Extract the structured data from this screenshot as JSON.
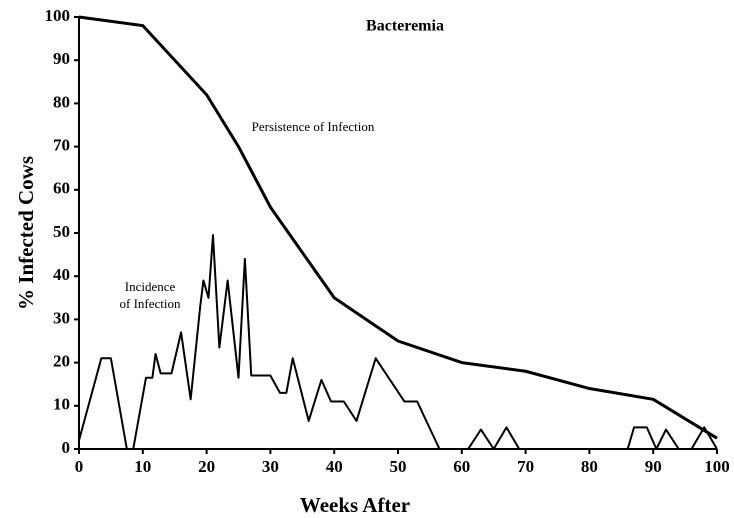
{
  "chart_data": {
    "type": "line",
    "title": "Bacteremia",
    "xlabel": "Weeks After",
    "ylabel": "% Infected Cows",
    "annotations": [
      "Persistence of Infection",
      "Incidence",
      "of Infection"
    ],
    "xlim": [
      0,
      100
    ],
    "xticks": [
      0,
      10,
      20,
      30,
      40,
      50,
      60,
      70,
      80,
      90,
      100
    ],
    "ylim": [
      0,
      100
    ],
    "yticks": [
      0,
      10,
      20,
      30,
      40,
      50,
      60,
      70,
      80,
      90,
      100
    ],
    "grid": false,
    "series": [
      {
        "color": "#000000",
        "x": [
          0,
          10,
          20,
          25,
          30,
          40,
          50,
          60,
          70,
          80,
          90,
          100
        ],
        "values": [
          100,
          98,
          82,
          70,
          56,
          35,
          25,
          20,
          18,
          14,
          11.5,
          2.5
        ]
      },
      {
        "color": "#000000",
        "x": [
          0,
          3.5,
          5,
          7.5,
          8.5,
          10.5,
          11.5,
          12,
          12.8,
          14.5,
          16,
          17.5,
          19,
          19.5,
          20.3,
          21,
          22,
          23.3,
          25,
          26,
          27,
          30,
          31.5,
          32.5,
          33.5,
          36,
          38,
          39.5,
          41.5,
          43.5,
          46.5,
          51,
          53,
          56.5,
          61,
          63,
          65,
          67,
          69,
          86,
          87,
          89,
          90.5,
          92,
          94,
          96,
          98,
          100
        ],
        "values": [
          2,
          21,
          21,
          0,
          0,
          16.5,
          16.5,
          22,
          17.5,
          17.5,
          27,
          11.5,
          33,
          39,
          35,
          49.5,
          23.5,
          39,
          16.5,
          44,
          17,
          17,
          13,
          13,
          21,
          6.5,
          16,
          11,
          11,
          6.5,
          21,
          11,
          11,
          0,
          0,
          4.5,
          0,
          5,
          0,
          0,
          5,
          5,
          0,
          4.5,
          0,
          0,
          5,
          0
        ]
      }
    ]
  }
}
